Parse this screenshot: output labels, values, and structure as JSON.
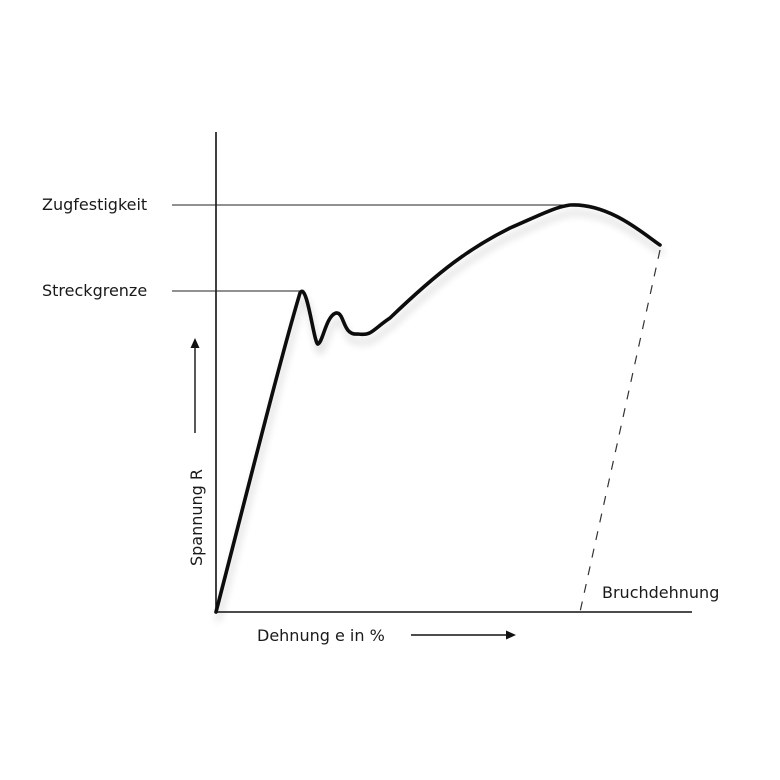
{
  "labels": {
    "tensile_strength": "Zugfestigkeit",
    "yield_point": "Streckgrenze",
    "y_axis": "Spannung R",
    "x_axis": "Dehnung e in %",
    "elongation_at_break": "Bruchdehnung"
  },
  "colors": {
    "curve": "#111111",
    "axis": "#111111",
    "background": "#ffffff"
  }
}
